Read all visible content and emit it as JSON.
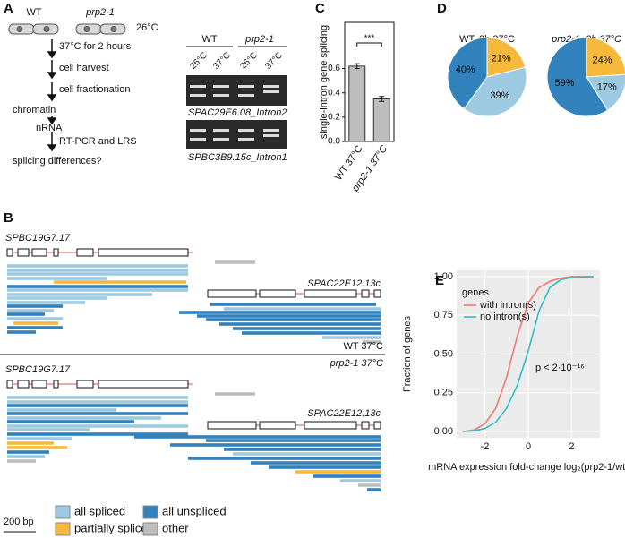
{
  "panel_a": {
    "label": "A",
    "strains": [
      "WT",
      "prp2-1"
    ],
    "temperature": "26°C",
    "steps": [
      "37°C for 2 hours",
      "cell harvest",
      "cell fractionation"
    ],
    "fraction": "chromatin",
    "rna": "nRNA",
    "method": "RT-PCR and LRS",
    "question": "splicing differences?",
    "gel": {
      "groups": [
        "WT",
        "prp2-1"
      ],
      "lanes": [
        "26°C",
        "37°C",
        "26°C",
        "37°C"
      ],
      "introns": [
        "SPAC29E6.08_Intron2",
        "SPBC3B9.15c_Intron1"
      ]
    }
  },
  "panel_b": {
    "label": "B",
    "genes": [
      "SPBC19G7.17",
      "SPAC22E12.13c"
    ],
    "conditions": [
      "WT 37°C",
      "prp2-1 37°C"
    ],
    "legend": [
      {
        "name": "all spliced",
        "color": "#9ecae1"
      },
      {
        "name": "all unspliced",
        "color": "#3182bd"
      },
      {
        "name": "partially spliced",
        "color": "#f6b93b"
      },
      {
        "name": "other",
        "color": "#bdbdbd"
      }
    ],
    "scale": "200 bp"
  },
  "chart_data": [
    {
      "type": "bar",
      "panel": "C",
      "ylabel": "single-intron gene splicing",
      "categories": [
        "WT 37°C",
        "prp2-1 37°C"
      ],
      "values": [
        0.62,
        0.35
      ],
      "errors": [
        0.02,
        0.02
      ],
      "color": "#bdbdbd",
      "annotation": "***",
      "ylim": [
        0,
        0.98
      ],
      "yticks": [
        {
          "value": 0,
          "label": "0.0"
        },
        {
          "value": 0.2,
          "label": "0.2"
        },
        {
          "value": 0.4,
          "label": "0.4"
        },
        {
          "value": 0.6,
          "label": "0.6"
        }
      ]
    },
    {
      "type": "pie",
      "panel": "D",
      "title": "WT, 2h 37°C",
      "values": [
        21,
        39,
        40
      ],
      "value_labels": [
        "21%",
        "39%",
        "40%"
      ],
      "colors": [
        "#f6b93b",
        "#9ecae1",
        "#3182bd"
      ]
    },
    {
      "type": "pie",
      "title": "prp2-1, 2h 37°C",
      "values": [
        24,
        17,
        59
      ],
      "value_labels": [
        "24%",
        "17%",
        "59%"
      ],
      "colors": [
        "#f6b93b",
        "#9ecae1",
        "#3182bd"
      ]
    },
    {
      "type": "line",
      "panel": "E",
      "xlabel": "mRNA expression fold-change log₂(prp2-1/wt)",
      "ylabel": "Fraction of genes",
      "legend_title": "genes",
      "annotation": "p < 2·10⁻¹⁶",
      "grid": true,
      "xlim": [
        -3.3,
        3.3
      ],
      "xticks": [
        -2,
        0,
        2
      ],
      "ylim": [
        -0.04,
        1.04
      ],
      "yticks": [
        {
          "value": 0,
          "label": "0.00"
        },
        {
          "value": 0.25,
          "label": "0.25"
        },
        {
          "value": 0.5,
          "label": "0.50"
        },
        {
          "value": 0.75,
          "label": "0.75"
        },
        {
          "value": 1,
          "label": "1.00"
        }
      ],
      "series": [
        {
          "name": "with intron(s)",
          "color": "#f07a73",
          "x": [
            -3,
            -2.5,
            -2,
            -1.5,
            -1,
            -0.5,
            0,
            0.5,
            1,
            1.5,
            2,
            3
          ],
          "values": [
            0,
            0.01,
            0.05,
            0.15,
            0.35,
            0.62,
            0.83,
            0.93,
            0.97,
            0.99,
            1,
            1
          ]
        },
        {
          "name": "no intron(s)",
          "color": "#2ebfc0",
          "x": [
            -3,
            -2.5,
            -2,
            -1.5,
            -1,
            -0.5,
            0,
            0.5,
            1,
            1.5,
            2,
            3
          ],
          "values": [
            0,
            0.005,
            0.02,
            0.06,
            0.15,
            0.3,
            0.52,
            0.78,
            0.93,
            0.98,
            0.995,
            1
          ]
        }
      ]
    }
  ]
}
